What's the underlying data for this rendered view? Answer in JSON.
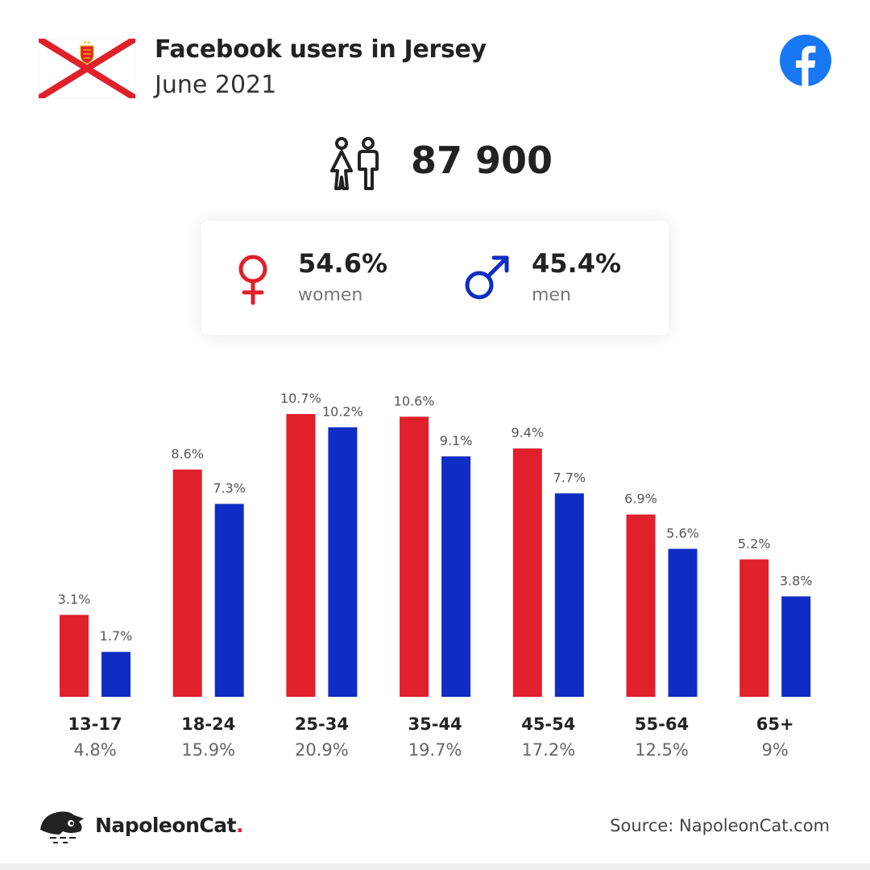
{
  "header": {
    "title": "Facebook users in Jersey",
    "subtitle": "June 2021",
    "flag_icon": "jersey-flag-icon",
    "brand_icon": "facebook-icon"
  },
  "total": {
    "value": "87 900",
    "icon": "people-icon"
  },
  "gender": {
    "women": {
      "pct": "54.6%",
      "label": "women",
      "icon": "female-symbol-icon",
      "color": "#e0202b"
    },
    "men": {
      "pct": "45.4%",
      "label": "men",
      "icon": "male-symbol-icon",
      "color": "#0f2dc4"
    }
  },
  "chart_data": {
    "type": "bar",
    "categories": [
      "13-17",
      "18-24",
      "25-34",
      "35-44",
      "45-54",
      "55-64",
      "65+"
    ],
    "category_totals": [
      "4.8%",
      "15.9%",
      "20.9%",
      "19.7%",
      "17.2%",
      "12.5%",
      "9%"
    ],
    "series": [
      {
        "values": [
          3.1,
          8.6,
          10.7,
          10.6,
          9.4,
          6.9,
          5.2
        ],
        "color": "#e0202b"
      },
      {
        "values": [
          1.7,
          7.3,
          10.2,
          9.1,
          7.7,
          5.6,
          3.8
        ],
        "color": "#0f2dc4"
      }
    ],
    "value_suffix": "%",
    "title": "",
    "xlabel": "",
    "ylabel": "",
    "grid": false,
    "ylim": [
      0,
      10.7
    ]
  },
  "footer": {
    "brand_name": "NapoleonCat",
    "brand_dot": ".",
    "source": "Source: NapoleonCat.com",
    "logo_icon": "napoleoncat-logo-icon"
  }
}
